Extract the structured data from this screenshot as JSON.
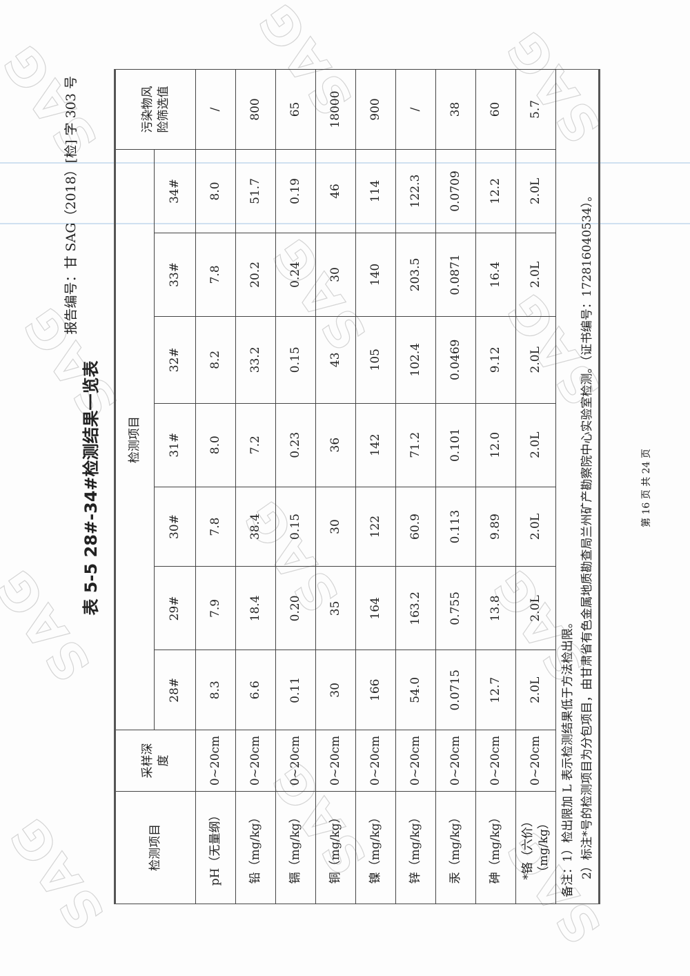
{
  "header": {
    "report_number": "报告编号：甘 SAG（2018）[检] 字 303 号"
  },
  "title": "表 5-5   28#-34#检测结果一览表",
  "watermark": "SAG",
  "table": {
    "col_item": "检测项目",
    "col_depth": "采样深度",
    "group_header": "检测项目",
    "samples": [
      "28#",
      "29#",
      "30#",
      "31#",
      "32#",
      "33#",
      "34#"
    ],
    "col_screening": "污染物风险筛选值",
    "rows": [
      {
        "item": "pH（无量纲）",
        "depth": "0~20cm",
        "values": [
          "8.3",
          "7.9",
          "7.8",
          "8.0",
          "8.2",
          "7.8",
          "8.0"
        ],
        "screening": "/"
      },
      {
        "item": "铅（mg/kg）",
        "depth": "0~20cm",
        "values": [
          "6.6",
          "18.4",
          "38.4",
          "7.2",
          "33.2",
          "20.2",
          "51.7"
        ],
        "screening": "800"
      },
      {
        "item": "镉（mg/kg）",
        "depth": "0~20cm",
        "values": [
          "0.11",
          "0.20",
          "0.15",
          "0.23",
          "0.15",
          "0.24",
          "0.19"
        ],
        "screening": "65"
      },
      {
        "item": "铜（mg/kg）",
        "depth": "0~20cm",
        "values": [
          "30",
          "35",
          "30",
          "36",
          "43",
          "30",
          "46"
        ],
        "screening": "18000"
      },
      {
        "item": "镍（mg/kg）",
        "depth": "0~20cm",
        "values": [
          "166",
          "164",
          "122",
          "142",
          "105",
          "140",
          "114"
        ],
        "screening": "900"
      },
      {
        "item": "锌（mg/kg）",
        "depth": "0~20cm",
        "values": [
          "54.0",
          "163.2",
          "60.9",
          "71.2",
          "102.4",
          "203.5",
          "122.3"
        ],
        "screening": "/"
      },
      {
        "item": "汞（mg/kg）",
        "depth": "0~20cm",
        "values": [
          "0.0715",
          "0.755",
          "0.113",
          "0.101",
          "0.0469",
          "0.0871",
          "0.0709"
        ],
        "screening": "38"
      },
      {
        "item": "砷（mg/kg）",
        "depth": "0~20cm",
        "values": [
          "12.7",
          "13.8",
          "9.89",
          "12.0",
          "9.12",
          "16.4",
          "12.2"
        ],
        "screening": "60"
      },
      {
        "item": "*铬（六价）（mg/kg）",
        "depth": "0~20cm",
        "values": [
          "2.0L",
          "2.0L",
          "2.0L",
          "2.0L",
          "2.0L",
          "2.0L",
          "2.0L"
        ],
        "screening": "5.7"
      }
    ]
  },
  "notes": {
    "line1": "备注：1）检出限加 L 表示检测结果低于方法检出限。",
    "line2": "2）标注*号的检测项目为分包项目，由甘肃省有色金属地质勘查局兰州矿产勘察院中心实验室检测。（证书编号：172816040534）。"
  },
  "footer": {
    "page": "第 16 页 共 24 页"
  }
}
